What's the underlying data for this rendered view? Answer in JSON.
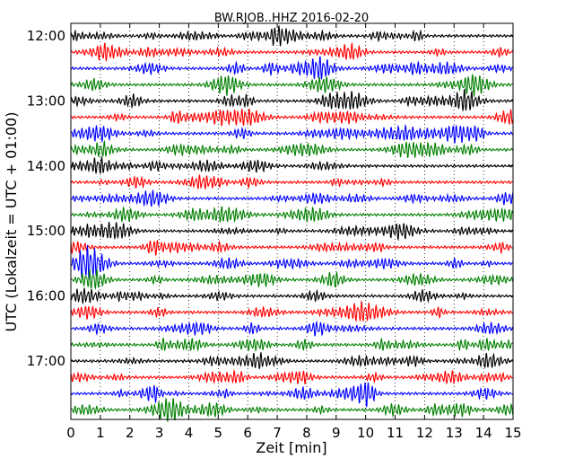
{
  "chart_data": {
    "type": "line",
    "title": "BW.RJOB..HHZ 2016-02-20",
    "xlabel": "Zeit  [min]",
    "ylabel": "UTC (Lokalzeit = UTC + 01:00)",
    "xlim": [
      0,
      15
    ],
    "x_ticks": [
      "0",
      "1",
      "2",
      "3",
      "4",
      "5",
      "6",
      "7",
      "8",
      "9",
      "10",
      "11",
      "12",
      "13",
      "14",
      "15"
    ],
    "y_ticks": [
      "12:00",
      "13:00",
      "14:00",
      "15:00",
      "16:00",
      "17:00"
    ],
    "grid": true,
    "trace_count": 24,
    "trace_start": "12:00",
    "trace_interval_minutes": 15,
    "colors": [
      "#000000",
      "#ff0000",
      "#0000ff",
      "#008000"
    ]
  }
}
